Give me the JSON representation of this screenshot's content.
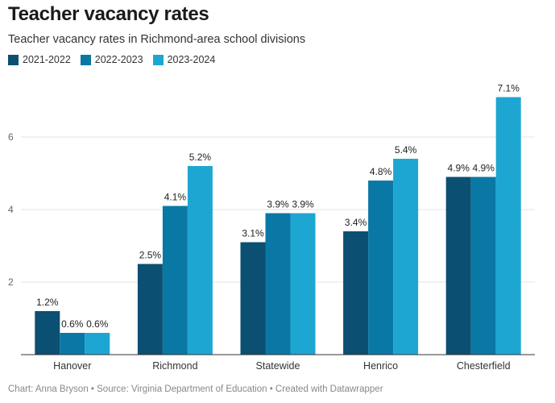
{
  "title": "Teacher vacancy rates",
  "subtitle": "Teacher vacancy rates in Richmond-area school divisions",
  "footer": "Chart: Anna Bryson • Source: Virginia Department of Education • Created with Datawrapper",
  "chart_data": {
    "type": "bar",
    "categories": [
      "Hanover",
      "Richmond",
      "Statewide",
      "Henrico",
      "Chesterfield"
    ],
    "series": [
      {
        "name": "2021-2022",
        "color": "#0b4f72",
        "values": [
          1.2,
          2.5,
          3.1,
          3.4,
          4.9
        ],
        "labels": [
          "1.2%",
          "2.5%",
          "3.1%",
          "3.4%",
          "4.9%"
        ]
      },
      {
        "name": "2022-2023",
        "color": "#0a78a5",
        "values": [
          0.6,
          4.1,
          3.9,
          4.8,
          4.9
        ],
        "labels": [
          "0.6%",
          "4.1%",
          "3.9%",
          "4.8%",
          "4.9%"
        ]
      },
      {
        "name": "2023-2024",
        "color": "#1ea6d3",
        "values": [
          0.6,
          5.2,
          3.9,
          5.4,
          7.1
        ],
        "labels": [
          "0.6%",
          "5.2%",
          "3.9%",
          "5.4%",
          "7.1%"
        ]
      }
    ],
    "yticks": [
      2,
      4,
      6
    ],
    "ylim": [
      0,
      7.5
    ],
    "grid": true,
    "legend": "top-left"
  }
}
